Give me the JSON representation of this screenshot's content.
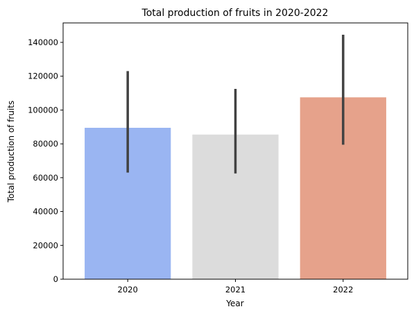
{
  "chart_data": {
    "type": "bar",
    "title": "Total production of fruits in 2020-2022",
    "xlabel": "Year",
    "ylabel": "Total production of fruits",
    "categories": [
      "2020",
      "2021",
      "2022"
    ],
    "values": [
      89500,
      85500,
      107500
    ],
    "error_bars": [
      {
        "low": 63000,
        "high": 123000
      },
      {
        "low": 62500,
        "high": 112500
      },
      {
        "low": 79500,
        "high": 144500
      }
    ],
    "bar_colors": [
      "#9ab5f2",
      "#dcdcdc",
      "#e6a28b"
    ],
    "error_color": "#424242",
    "ylim": [
      0,
      151500
    ],
    "yticks": [
      0,
      20000,
      40000,
      60000,
      80000,
      100000,
      120000,
      140000
    ],
    "ytick_labels": [
      "0",
      "20000",
      "40000",
      "60000",
      "80000",
      "100000",
      "120000",
      "140000"
    ],
    "grid": false,
    "legend": "none"
  }
}
